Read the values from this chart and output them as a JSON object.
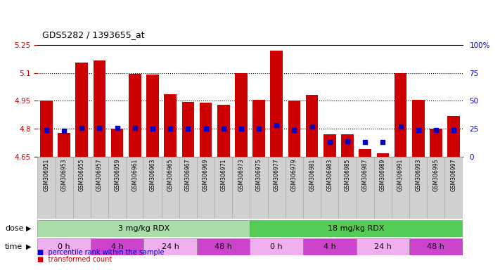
{
  "title": "GDS5282 / 1393655_at",
  "samples": [
    "GSM306951",
    "GSM306953",
    "GSM306955",
    "GSM306957",
    "GSM306959",
    "GSM306961",
    "GSM306963",
    "GSM306965",
    "GSM306967",
    "GSM306969",
    "GSM306971",
    "GSM306973",
    "GSM306975",
    "GSM306977",
    "GSM306979",
    "GSM306981",
    "GSM306983",
    "GSM306985",
    "GSM306987",
    "GSM306989",
    "GSM306991",
    "GSM306993",
    "GSM306995",
    "GSM306997"
  ],
  "transformed_count": [
    4.95,
    4.78,
    5.155,
    5.165,
    4.8,
    5.095,
    5.09,
    4.985,
    4.945,
    4.94,
    4.93,
    5.1,
    4.955,
    5.22,
    4.95,
    4.98,
    4.77,
    4.77,
    4.69,
    4.67,
    5.1,
    4.955,
    4.8,
    4.87
  ],
  "percentile_rank": [
    24,
    23,
    26,
    26,
    26,
    26,
    25,
    25,
    25,
    25,
    25,
    25,
    25,
    28,
    24,
    27,
    13,
    14,
    13,
    13,
    27,
    24,
    24,
    24
  ],
  "ymin": 4.65,
  "ymax": 5.25,
  "yticks": [
    4.65,
    4.8,
    4.95,
    5.1,
    5.25
  ],
  "ytick_labels": [
    "4.65",
    "4.8",
    "4.95",
    "5.1",
    "5.25"
  ],
  "right_yticks": [
    0,
    25,
    50,
    75,
    100
  ],
  "right_ytick_labels": [
    "0",
    "25",
    "50",
    "75",
    "100%"
  ],
  "bar_color": "#cc0000",
  "dot_color": "#0000cc",
  "dose_groups": [
    {
      "label": "3 mg/kg RDX",
      "start": 0,
      "end": 12,
      "color": "#aaddaa"
    },
    {
      "label": "18 mg/kg RDX",
      "start": 12,
      "end": 24,
      "color": "#55cc55"
    }
  ],
  "time_groups": [
    {
      "label": "0 h",
      "start": 0,
      "end": 3,
      "color": "#f0b0f0"
    },
    {
      "label": "4 h",
      "start": 3,
      "end": 6,
      "color": "#cc44cc"
    },
    {
      "label": "24 h",
      "start": 6,
      "end": 9,
      "color": "#f0b0f0"
    },
    {
      "label": "48 h",
      "start": 9,
      "end": 12,
      "color": "#cc44cc"
    },
    {
      "label": "0 h",
      "start": 12,
      "end": 15,
      "color": "#f0b0f0"
    },
    {
      "label": "4 h",
      "start": 15,
      "end": 18,
      "color": "#cc44cc"
    },
    {
      "label": "24 h",
      "start": 18,
      "end": 21,
      "color": "#f0b0f0"
    },
    {
      "label": "48 h",
      "start": 21,
      "end": 24,
      "color": "#cc44cc"
    }
  ],
  "dose_label": "dose",
  "time_label": "time",
  "legend_items": [
    {
      "label": "transformed count",
      "color": "#cc0000"
    },
    {
      "label": "percentile rank within the sample",
      "color": "#0000cc"
    }
  ]
}
